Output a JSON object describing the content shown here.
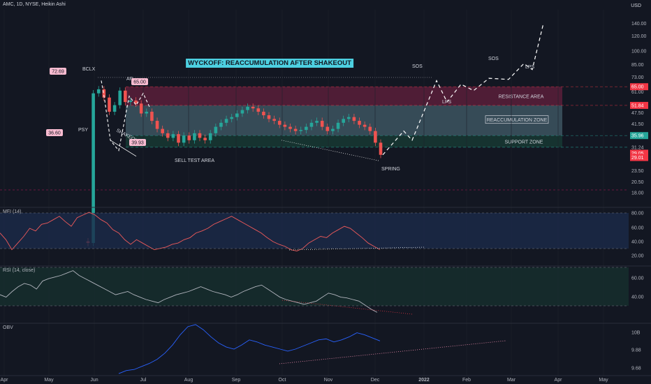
{
  "header": {
    "symbol_line": "AMC, 1D, NYSE, Heikin Ashi",
    "currency": "USD"
  },
  "colors": {
    "bg": "#131722",
    "up": "#26a69a",
    "down": "#ef5350",
    "grid": "#1e222d",
    "resistance_band": "#5a1e3a",
    "reaccumulation_band": "#3d5560",
    "support_band": "#173833",
    "mfi_pane": "#1c2a4a",
    "rsi_pane": "#16302e",
    "obv_line": "#2962ff",
    "mfi_line": "#f05a5a",
    "rsi_line": "#b2b5be"
  },
  "chart_data": {
    "type": "candlestick",
    "title": "WYCKOFF: REACCUMULATION AFTER SHAKEOUT",
    "x_ticks": [
      "Apr",
      "May",
      "Jun",
      "Jul",
      "Aug",
      "Sep",
      "Oct",
      "Nov",
      "Dec",
      "2022",
      "Feb",
      "Mar",
      "Apr",
      "May"
    ],
    "y_ticks": [
      "140.00",
      "120.00",
      "100.00",
      "85.00",
      "73.00",
      "61.00",
      "47.50",
      "41.50",
      "31.24",
      "23.50",
      "20.50",
      "18.00"
    ],
    "price_labels": [
      {
        "text": "65.00",
        "color": "#f23645",
        "value": 65.0
      },
      {
        "text": "51.84",
        "color": "#f23645",
        "value": 51.84
      },
      {
        "text": "35.96",
        "color": "#26a69a",
        "value": 35.96
      },
      {
        "text": "29.05",
        "color": "#f23645",
        "value": 29.05
      },
      {
        "text": "29.01",
        "color": "#f23645",
        "value": 29.01
      }
    ],
    "zones": [
      {
        "label": "RESISTANCE AREA",
        "from": 51.84,
        "to": 65.0
      },
      {
        "label": "REACCUMULATION ZONE",
        "from": 35.96,
        "to": 51.84
      },
      {
        "label": "SUPPORT ZONE",
        "from": 31.24,
        "to": 35.96
      }
    ],
    "annotations": [
      {
        "text": "BCLX",
        "tag": "72.69"
      },
      {
        "text": "AR",
        "tag": "65.00"
      },
      {
        "text": "PSY",
        "tag": "36.60"
      },
      {
        "text": "SHAKEOUT",
        "tag": "39.93"
      },
      {
        "text": "SELL TEST AREA"
      },
      {
        "text": "SPRING"
      },
      {
        "text": "SOS"
      },
      {
        "text": "LPS"
      },
      {
        "text": "SOS"
      },
      {
        "text": "LPS"
      }
    ],
    "price_path": [
      10,
      9.8,
      60,
      63,
      57,
      48,
      52,
      62,
      54,
      55,
      53,
      47,
      48,
      43,
      39,
      37,
      35,
      36.6,
      33,
      36,
      34,
      37,
      35,
      34,
      37,
      40,
      42,
      44,
      45,
      47,
      49,
      51,
      50,
      48,
      46,
      44,
      43,
      41,
      40,
      39,
      38,
      38.5,
      40,
      42,
      43,
      40,
      38,
      39,
      42,
      44,
      45,
      43,
      41,
      40,
      38,
      33,
      28.5
    ],
    "projection": [
      28.5,
      38,
      34,
      70,
      54,
      67,
      62,
      72,
      71,
      86,
      80,
      140
    ],
    "indicators": {
      "mfi": {
        "label": "MFI (14)",
        "y_ticks": [
          "80.00",
          "60.00",
          "40.00",
          "20.00"
        ],
        "values": [
          55,
          45,
          30,
          40,
          50,
          62,
          58,
          68,
          70,
          75,
          80,
          72,
          65,
          78,
          82,
          86,
          82,
          75,
          70,
          60,
          55,
          45,
          38,
          45,
          40,
          35,
          30,
          32,
          34,
          38,
          40,
          45,
          48,
          55,
          58,
          62,
          68,
          72,
          76,
          80,
          75,
          70,
          65,
          60,
          55,
          48,
          42,
          38,
          35,
          30,
          28,
          32,
          40,
          45,
          50,
          48,
          55,
          60,
          65,
          62,
          55,
          48,
          40,
          35,
          30
        ]
      },
      "rsi": {
        "label": "RSI (14, close)",
        "y_ticks": [
          "60.00",
          "40.00"
        ],
        "values": [
          48,
          45,
          52,
          58,
          62,
          60,
          55,
          65,
          68,
          70,
          72,
          75,
          78,
          72,
          68,
          64,
          60,
          56,
          52,
          48,
          50,
          52,
          48,
          45,
          42,
          40,
          38,
          42,
          45,
          48,
          50,
          52,
          55,
          58,
          55,
          52,
          50,
          48,
          45,
          48,
          52,
          55,
          58,
          60,
          55,
          50,
          45,
          42,
          40,
          38,
          36,
          38,
          40,
          45,
          50,
          48,
          45,
          44,
          42,
          40,
          35,
          30,
          26
        ]
      },
      "obv": {
        "label": "OBV",
        "y_ticks": [
          "10B",
          "9.88",
          "9.68"
        ],
        "values": [
          9.62,
          9.65,
          9.66,
          9.69,
          9.72,
          9.76,
          9.82,
          9.9,
          10.0,
          10.08,
          10.1,
          10.05,
          9.98,
          9.92,
          9.88,
          9.86,
          9.9,
          9.95,
          9.93,
          9.9,
          9.88,
          9.86,
          9.84,
          9.86,
          9.89,
          9.92,
          9.95,
          9.96,
          9.93,
          9.95,
          9.98,
          10.02,
          10.0,
          9.97,
          9.94
        ]
      }
    }
  }
}
